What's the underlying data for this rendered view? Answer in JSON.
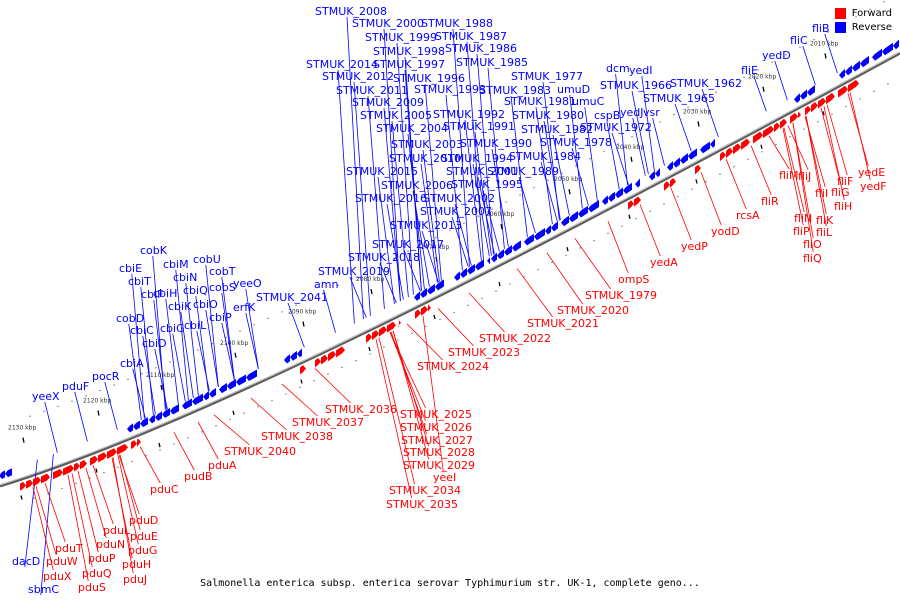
{
  "caption": "Salmonella enterica subsp. enterica serovar Typhimurium str. UK-1, complete geno...",
  "legend": {
    "forward_label": "Forward",
    "reverse_label": "Reverse",
    "forward_color": "#ff0000",
    "reverse_color": "#0000ff"
  },
  "kbp_labels": [
    "2130 kbp",
    "2120 kbp",
    "2110 kbp",
    "2100 kbp",
    "2090 kbp",
    "2080 kbp",
    "2070 kbp",
    "2060 kbp",
    "2050 kbp",
    "2040 kbp",
    "2030 kbp",
    "2020 kbp",
    "2010 kbp"
  ],
  "reverse_genes": [
    "dacD",
    "sbmC",
    "yeeX",
    "pduF",
    "pocR",
    "cbiA",
    "cobD",
    "cbiC",
    "cbiD",
    "cbiE",
    "cbiT",
    "cbiF",
    "cbiH",
    "cbiG",
    "cobK",
    "cbiM",
    "cbiN",
    "cbiK",
    "cbiL",
    "cbiQ",
    "cbiO",
    "cbiP",
    "cobU",
    "cobS",
    "cobT",
    "yeeO",
    "erfK",
    "STMUK_2041",
    "amn",
    "STMUK_2019",
    "STMUK_2018",
    "STMUK_2017",
    "STMUK_2013",
    "STMUK_2007",
    "STMUK_2002",
    "STMUK_2016",
    "STMUK_2006",
    "STMUK_2015",
    "STMUK_2010",
    "STMUK_2003",
    "STMUK_2004",
    "STMUK_2005",
    "STMUK_2009",
    "STMUK_2011",
    "STMUK_2012",
    "STMUK_2014",
    "STMUK_1997",
    "STMUK_1998",
    "STMUK_1999",
    "STMUK_2000",
    "STMUK_2008",
    "STMUK_1996",
    "STMUK_1993",
    "STMUK_1992",
    "STMUK_1991",
    "STMUK_1990",
    "STMUK_1994",
    "STMUK_2001",
    "STMUK_1995",
    "STMUK_1989",
    "STMUK_1984",
    "STMUK_1978",
    "STMUK_1982",
    "STMUK_1980",
    "STMUK_1981",
    "STMUK_1983",
    "STMUK_1985",
    "STMUK_1986",
    "STMUK_1987",
    "STMUK_1988",
    "STMUK_1977",
    "umuD",
    "umuC",
    "cspB",
    "STMUK_1972",
    "yedJ",
    "vsr",
    "dcm",
    "yedI",
    "STMUK_1966",
    "STMUK_1965",
    "STMUK_1962",
    "fliE",
    "yedD",
    "fliC",
    "fliB"
  ],
  "forward_genes": [
    "pduX",
    "pduS",
    "pduT",
    "pduW",
    "pduQ",
    "pduP",
    "pduN",
    "pduL",
    "pduJ",
    "pduH",
    "pduG",
    "pduE",
    "pduD",
    "pduC",
    "pudB",
    "pduA",
    "STMUK_2040",
    "STMUK_2038",
    "STMUK_2037",
    "STMUK_2036",
    "STMUK_2035",
    "STMUK_2034",
    "yeeI",
    "STMUK_2029",
    "STMUK_2028",
    "STMUK_2027",
    "STMUK_2026",
    "STMUK_2025",
    "STMUK_2024",
    "STMUK_2023",
    "STMUK_2022",
    "STMUK_2021",
    "STMUK_2020",
    "STMUK_1979",
    "ompS",
    "yedA",
    "yedP",
    "yodD",
    "rcsA",
    "fliR",
    "fliQ",
    "fliP",
    "fliO",
    "fliN",
    "fliL",
    "fliM",
    "fliJ",
    "fliK",
    "fliI",
    "fliH",
    "fliG",
    "fliF",
    "yedF",
    "yedE"
  ]
}
